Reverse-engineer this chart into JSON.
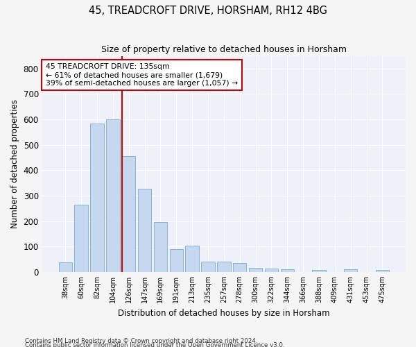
{
  "title": "45, TREADCROFT DRIVE, HORSHAM, RH12 4BG",
  "subtitle": "Size of property relative to detached houses in Horsham",
  "xlabel": "Distribution of detached houses by size in Horsham",
  "ylabel": "Number of detached properties",
  "bar_color": "#c5d8f0",
  "bar_edge_color": "#7aadd4",
  "background_color": "#eef2f8",
  "grid_color": "#ffffff",
  "categories": [
    "38sqm",
    "60sqm",
    "82sqm",
    "104sqm",
    "126sqm",
    "147sqm",
    "169sqm",
    "191sqm",
    "213sqm",
    "235sqm",
    "257sqm",
    "278sqm",
    "300sqm",
    "322sqm",
    "344sqm",
    "366sqm",
    "388sqm",
    "409sqm",
    "431sqm",
    "453sqm",
    "475sqm"
  ],
  "values": [
    38,
    265,
    585,
    600,
    455,
    328,
    195,
    90,
    102,
    40,
    40,
    35,
    15,
    14,
    10,
    0,
    7,
    0,
    10,
    0,
    7
  ],
  "vline_index": 4,
  "vline_color": "#cc0000",
  "annotation_line1": "45 TREADCROFT DRIVE: 135sqm",
  "annotation_line2": "← 61% of detached houses are smaller (1,679)",
  "annotation_line3": "39% of semi-detached houses are larger (1,057) →",
  "annotation_box_color": "#ffffff",
  "annotation_box_edge": "#cc0000",
  "ylim": [
    0,
    850
  ],
  "yticks": [
    0,
    100,
    200,
    300,
    400,
    500,
    600,
    700,
    800
  ],
  "footer1": "Contains HM Land Registry data © Crown copyright and database right 2024.",
  "footer2": "Contains public sector information licensed under the Open Government Licence v3.0."
}
